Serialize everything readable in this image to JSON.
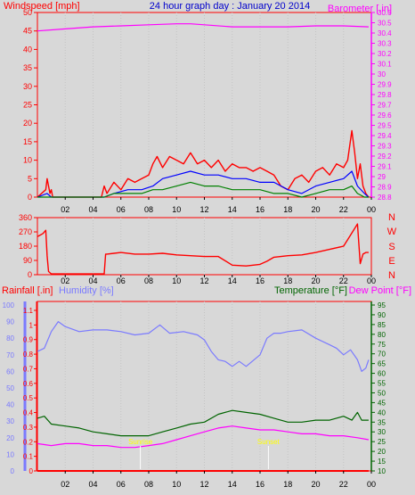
{
  "header": {
    "wind_label": "Windspeed [mph]",
    "title": "24 hour graph day : January 20 2014",
    "baro_label": "Barometer [.in]",
    "rain_label": "Rainfall [.in]",
    "humidity_label": "Humidity [%]",
    "temp_label": "Temperature [°F]",
    "dew_label": "Dew Point [°F]",
    "sunrise_label": "Sunrise",
    "sunset_label": "Sunset"
  },
  "colors": {
    "background": "#d8d8d8",
    "wind": "#ff0000",
    "wind_avg": "#0000ff",
    "wind_low": "#008000",
    "barometer": "#ff00ff",
    "direction": "#ff0000",
    "rain": "#ff0000",
    "humidity": "#7a7aff",
    "temperature": "#006400",
    "dewpoint": "#ff00ff",
    "sun_marker": "#ffff00",
    "title": "#0000cc"
  },
  "chart_data": [
    {
      "type": "line",
      "ylabel": "Windspeed [mph]",
      "y2label": "Barometer [.in]",
      "x_ticks": [
        "02",
        "04",
        "06",
        "08",
        "10",
        "12",
        "14",
        "16",
        "18",
        "20",
        "22",
        "00"
      ],
      "ylim": [
        0,
        50
      ],
      "y_ticks": [
        0,
        5,
        10,
        15,
        20,
        25,
        30,
        35,
        40,
        45,
        50
      ],
      "y2lim": [
        28.8,
        30.6
      ],
      "y2_ticks": [
        "28.8",
        "28.9",
        "29",
        "29.1",
        "29.2",
        "29.3",
        "29.4",
        "29.5",
        "29.6",
        "29.7",
        "29.8",
        "29.9",
        "30",
        "30.1",
        "30.2",
        "30.3",
        "30.4",
        "30.5",
        "30.6"
      ],
      "series": [
        {
          "key": "barometer",
          "axis": "right",
          "x": [
            0,
            2,
            4,
            6,
            8,
            10,
            11,
            12,
            14,
            16,
            18,
            20,
            22,
            23.8
          ],
          "y": [
            30.42,
            30.44,
            30.46,
            30.47,
            30.48,
            30.49,
            30.49,
            30.48,
            30.46,
            30.46,
            30.46,
            30.47,
            30.47,
            30.46
          ]
        },
        {
          "key": "wind",
          "axis": "left",
          "x": [
            0,
            0.6,
            0.7,
            0.9,
            1.0,
            1.1,
            4.6,
            4.8,
            5.0,
            5.5,
            6.0,
            6.5,
            7.0,
            7.5,
            8.0,
            8.3,
            8.6,
            9.0,
            9.5,
            10.0,
            10.5,
            11.0,
            11.5,
            12.0,
            12.5,
            13.0,
            13.5,
            14.0,
            14.5,
            15.0,
            15.5,
            16.0,
            16.5,
            17.0,
            17.5,
            18.0,
            18.5,
            19.0,
            19.5,
            20.0,
            20.5,
            21.0,
            21.5,
            22.0,
            22.3,
            22.6,
            22.8,
            23.0,
            23.2,
            23.4,
            23.6,
            23.8
          ],
          "y": [
            0,
            2,
            5,
            1,
            2,
            0,
            0,
            3,
            1,
            4,
            2,
            5,
            4,
            5,
            6,
            9,
            11,
            8,
            11,
            10,
            9,
            12,
            9,
            10,
            8,
            10,
            7,
            9,
            8,
            8,
            7,
            8,
            7,
            6,
            3,
            2,
            5,
            6,
            4,
            7,
            8,
            6,
            9,
            8,
            10,
            18,
            12,
            5,
            9,
            3,
            1,
            0
          ]
        },
        {
          "key": "wind_avg",
          "axis": "left",
          "x": [
            0,
            0.7,
            1.0,
            4.8,
            5.5,
            6.5,
            7.5,
            8.3,
            9.0,
            10.0,
            11.0,
            12.0,
            13.0,
            14.0,
            15.0,
            16.0,
            17.0,
            18.0,
            19.0,
            20.0,
            21.0,
            22.0,
            22.6,
            23.0,
            23.5,
            23.8
          ],
          "y": [
            0,
            1,
            0,
            0,
            1,
            2,
            2,
            3,
            5,
            6,
            7,
            6,
            6,
            5,
            5,
            4,
            4,
            2,
            1,
            3,
            4,
            5,
            7,
            3,
            1,
            0
          ]
        },
        {
          "key": "wind_low",
          "axis": "left",
          "x": [
            0,
            4.8,
            5.5,
            6.5,
            7.5,
            8.3,
            9.0,
            10.0,
            11.0,
            12.0,
            13.0,
            14.0,
            15.0,
            16.0,
            17.0,
            18.0,
            19.0,
            20.0,
            21.0,
            22.0,
            22.6,
            23.0,
            23.5,
            23.8
          ],
          "y": [
            0,
            0,
            1,
            1,
            1,
            2,
            2,
            3,
            4,
            3,
            3,
            2,
            2,
            2,
            1,
            1,
            0,
            1,
            2,
            2,
            3,
            1,
            0,
            0
          ]
        }
      ]
    },
    {
      "type": "line",
      "x_ticks": [
        "02",
        "04",
        "06",
        "08",
        "10",
        "12",
        "14",
        "16",
        "18",
        "20",
        "22",
        "00"
      ],
      "ylim": [
        0,
        360
      ],
      "y_ticks": [
        0,
        90,
        180,
        270,
        360
      ],
      "y2_ticks": [
        "N",
        "W",
        "S",
        "E",
        "N"
      ],
      "series": [
        {
          "key": "direction",
          "axis": "left",
          "x": [
            0,
            0.2,
            0.4,
            0.6,
            0.7,
            0.8,
            1.0,
            4.8,
            4.9,
            5.0,
            6.0,
            7.0,
            8.0,
            9.0,
            10.0,
            11.0,
            12.0,
            13.0,
            14.0,
            15.0,
            16.0,
            16.5,
            17.0,
            18.0,
            19.0,
            20.0,
            21.0,
            22.0,
            22.5,
            23.0,
            23.2,
            23.4,
            23.6,
            23.8
          ],
          "y": [
            240,
            250,
            260,
            280,
            120,
            20,
            5,
            5,
            130,
            130,
            140,
            130,
            130,
            135,
            125,
            120,
            115,
            115,
            60,
            55,
            65,
            85,
            110,
            120,
            125,
            140,
            160,
            180,
            250,
            320,
            70,
            130,
            140,
            140
          ]
        }
      ]
    },
    {
      "type": "line",
      "x_ticks": [
        "02",
        "04",
        "06",
        "08",
        "10",
        "12",
        "14",
        "16",
        "18",
        "20",
        "22",
        "00"
      ],
      "rain_ticks": [
        "0",
        "0.1",
        "0.2",
        "0.3",
        "0.4",
        "0.5",
        "0.6",
        "0.7",
        "0.8",
        "0.9",
        "1",
        "1.1"
      ],
      "humidity_ticks": [
        0,
        10,
        20,
        30,
        40,
        50,
        60,
        70,
        80,
        90,
        100
      ],
      "temp_ticks": [
        10,
        15,
        20,
        25,
        30,
        35,
        40,
        45,
        50,
        55,
        60,
        65,
        70,
        75,
        80,
        85,
        90,
        95
      ],
      "ylim_rain": [
        0,
        1.1
      ],
      "ylim_humidity": [
        0,
        100
      ],
      "ylim_temp": [
        10,
        95
      ],
      "series": [
        {
          "key": "humidity",
          "axis": "humidity",
          "x": [
            0,
            0.5,
            1.0,
            1.5,
            2.0,
            3.0,
            4.0,
            5.0,
            6.0,
            7.0,
            8.0,
            8.8,
            9.5,
            10.5,
            11.5,
            12.0,
            12.5,
            13.0,
            13.5,
            14.0,
            14.5,
            15.0,
            16.0,
            16.5,
            17.0,
            17.5,
            18.0,
            19.0,
            20.0,
            21.0,
            21.5,
            22.0,
            22.5,
            23.0,
            23.3,
            23.6,
            23.8
          ],
          "y": [
            72,
            74,
            84,
            90,
            87,
            84,
            85,
            85,
            84,
            82,
            83,
            88,
            83,
            84,
            82,
            79,
            72,
            67,
            66,
            63,
            66,
            63,
            70,
            80,
            83,
            83,
            84,
            85,
            80,
            76,
            74,
            70,
            73,
            67,
            60,
            62,
            67
          ]
        },
        {
          "key": "temperature",
          "axis": "temp",
          "x": [
            0,
            0.5,
            1.0,
            2.0,
            3.0,
            4.0,
            5.0,
            6.0,
            7.0,
            8.0,
            9.0,
            10.0,
            11.0,
            12.0,
            13.0,
            14.0,
            15.0,
            16.0,
            17.0,
            18.0,
            19.0,
            20.0,
            21.0,
            22.0,
            22.6,
            23.0,
            23.3,
            23.8
          ],
          "y": [
            37,
            38,
            34,
            33,
            32,
            30,
            29,
            28,
            28,
            28,
            30,
            32,
            34,
            35,
            39,
            41,
            40,
            39,
            37,
            35,
            35,
            36,
            36,
            38,
            36,
            40,
            36,
            36
          ]
        },
        {
          "key": "dewpoint",
          "axis": "temp",
          "x": [
            0,
            1.0,
            2.0,
            3.0,
            4.0,
            5.0,
            6.0,
            7.0,
            8.0,
            9.0,
            10.0,
            11.0,
            12.0,
            13.0,
            14.0,
            15.0,
            16.0,
            17.0,
            18.0,
            19.0,
            20.0,
            21.0,
            22.0,
            23.0,
            23.8
          ],
          "y": [
            24,
            23,
            24,
            24,
            23,
            23,
            22,
            22,
            23,
            24,
            26,
            28,
            30,
            32,
            33,
            32,
            31,
            31,
            30,
            29,
            29,
            28,
            28,
            27,
            26
          ]
        },
        {
          "key": "rain",
          "axis": "rain",
          "x": [
            0,
            23.8
          ],
          "y": [
            0,
            0
          ]
        }
      ],
      "sunrise_hour": 7.4,
      "sunset_hour": 16.6
    }
  ]
}
